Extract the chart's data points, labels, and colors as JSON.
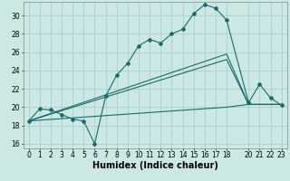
{
  "xlabel": "Humidex (Indice chaleur)",
  "bg_color": "#cce8e4",
  "grid_color": "#aacfcb",
  "line_color": "#1a6b6b",
  "marker_color": "#1a6b6b",
  "xlim": [
    -0.5,
    23.5
  ],
  "ylim": [
    15.5,
    31.5
  ],
  "xticks": [
    0,
    1,
    2,
    3,
    4,
    5,
    6,
    7,
    8,
    9,
    10,
    11,
    12,
    13,
    14,
    15,
    16,
    17,
    18,
    20,
    21,
    22,
    23
  ],
  "yticks": [
    16,
    18,
    20,
    22,
    24,
    26,
    28,
    30
  ],
  "line1_x": [
    0,
    1,
    2,
    3,
    4,
    5,
    6,
    7,
    8,
    9,
    10,
    11,
    12,
    13,
    14,
    15,
    16,
    17,
    18,
    20,
    21,
    22,
    23
  ],
  "line1_y": [
    18.5,
    19.8,
    19.7,
    19.2,
    18.7,
    18.5,
    16.0,
    21.2,
    23.5,
    24.8,
    26.7,
    27.4,
    27.0,
    28.0,
    28.5,
    30.2,
    31.2,
    30.8,
    29.5,
    20.5,
    22.5,
    21.0,
    20.2
  ],
  "line2_x": [
    0,
    18,
    20,
    23
  ],
  "line2_y": [
    18.5,
    25.8,
    20.3,
    20.3
  ],
  "line3_x": [
    0,
    18,
    20,
    23
  ],
  "line3_y": [
    18.5,
    25.2,
    20.3,
    20.3
  ],
  "line4_x": [
    0,
    18,
    20,
    23
  ],
  "line4_y": [
    18.5,
    20.0,
    20.3,
    20.3
  ],
  "xlabel_fontsize": 7,
  "tick_fontsize": 5.5
}
